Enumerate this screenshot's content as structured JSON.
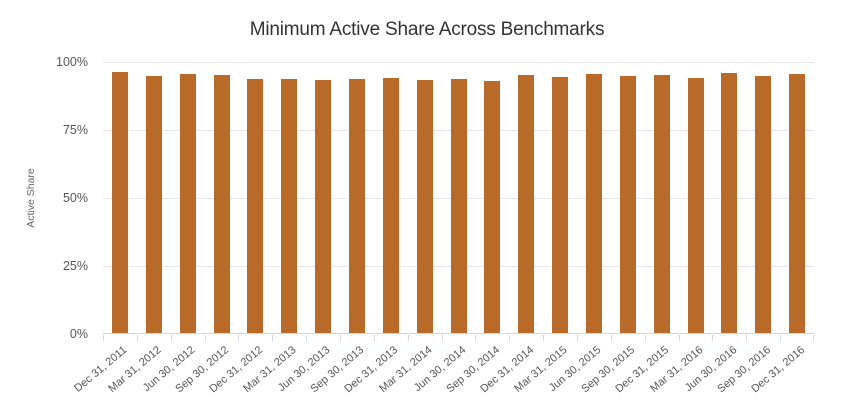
{
  "chart_data": {
    "type": "bar",
    "title": "Minimum Active Share Across Benchmarks",
    "xlabel": "",
    "ylabel": "Active Share",
    "ylim": [
      0,
      100
    ],
    "grid": "horizontal",
    "legend_position": "none",
    "y_ticks": [
      "0%",
      "25%",
      "50%",
      "75%",
      "100%"
    ],
    "y_tick_values": [
      0,
      25,
      50,
      75,
      100
    ],
    "categories": [
      "Dec 31, 2011",
      "Mar 31, 2012",
      "Jun 30, 2012",
      "Sep 30, 2012",
      "Dec 31, 2012",
      "Mar 31, 2013",
      "Jun 30, 2013",
      "Sep 30, 2013",
      "Dec 31, 2013",
      "Mar 31, 2014",
      "Jun 30, 2014",
      "Sep 30, 2014",
      "Dec 31, 2014",
      "Mar 31, 2015",
      "Jun 30, 2015",
      "Sep 30, 2015",
      "Dec 31, 2015",
      "Mar 31, 2016",
      "Jun 30, 2016",
      "Sep 30, 2016",
      "Dec 31, 2016"
    ],
    "values": [
      96.4,
      94.9,
      95.6,
      95.2,
      93.8,
      93.8,
      93.4,
      93.8,
      94.0,
      93.4,
      93.8,
      92.9,
      95.3,
      94.6,
      95.7,
      95.0,
      95.2,
      94.0,
      95.8,
      95.0,
      95.5
    ]
  },
  "colors": {
    "bar": "#b96a28",
    "gridline": "#e6e6e6",
    "axis_line": "#ccd6eb",
    "title_text": "#333333",
    "tick_label": "#555555",
    "axis_title": "#666666"
  }
}
